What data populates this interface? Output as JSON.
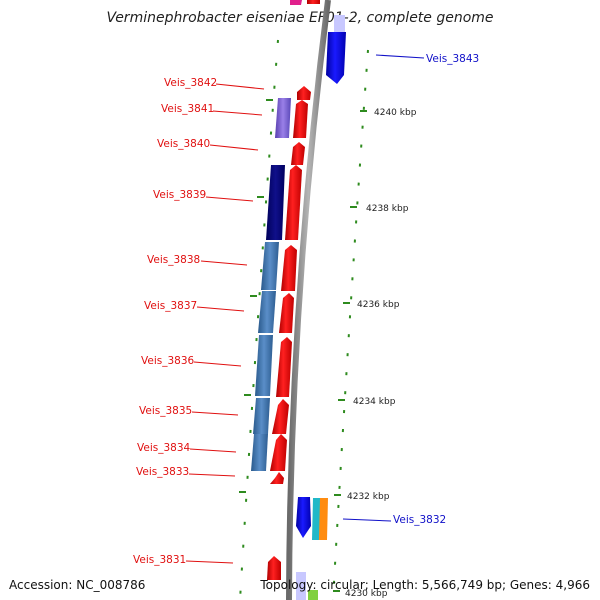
{
  "title": "Verminephrobacter eiseniae EF01-2, complete genome",
  "footer": {
    "accession": "Accession: NC_008786",
    "info": "Topology: circular; Length: 5,566,749 bp; Genes: 4,966"
  },
  "colors": {
    "label_red": "#e01010",
    "label_blue": "#1010c8",
    "forward_cds": "#ff1010",
    "reverse_cds": "#1010e8",
    "backbone": "#8a8a8a",
    "tick_green": "#2e8b1e"
  },
  "ticks": [
    {
      "label": "4240 kbp"
    },
    {
      "label": "4238 kbp"
    },
    {
      "label": "4236 kbp"
    },
    {
      "label": "4234 kbp"
    },
    {
      "label": "4232 kbp"
    },
    {
      "label": "4230 kbp"
    }
  ],
  "genes": [
    {
      "label": "Veis_3843",
      "color": "blue"
    },
    {
      "label": "Veis_3842",
      "color": "red"
    },
    {
      "label": "Veis_3841",
      "color": "red"
    },
    {
      "label": "Veis_3840",
      "color": "red"
    },
    {
      "label": "Veis_3839",
      "color": "red"
    },
    {
      "label": "Veis_3838",
      "color": "red"
    },
    {
      "label": "Veis_3837",
      "color": "red"
    },
    {
      "label": "Veis_3836",
      "color": "red"
    },
    {
      "label": "Veis_3835",
      "color": "red"
    },
    {
      "label": "Veis_3834",
      "color": "red"
    },
    {
      "label": "Veis_3833",
      "color": "red"
    },
    {
      "label": "Veis_3832",
      "color": "blue"
    },
    {
      "label": "Veis_3831",
      "color": "red"
    }
  ]
}
